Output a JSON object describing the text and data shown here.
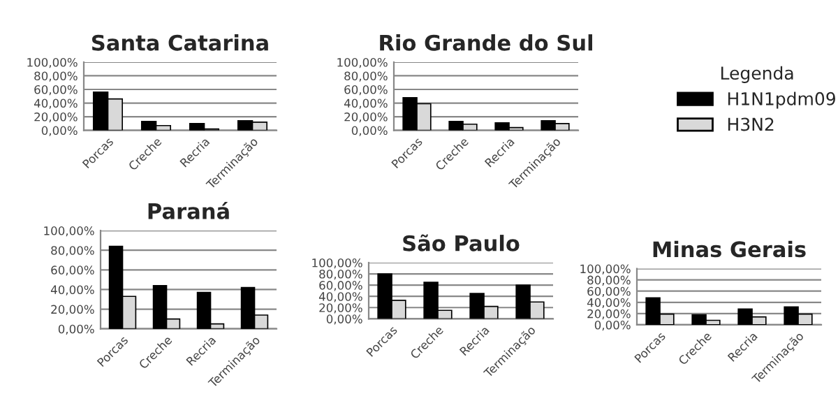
{
  "chart_data": [
    {
      "type": "bar",
      "title": "Santa Catarina",
      "categories": [
        "Porcas",
        "Creche",
        "Recria",
        "Terminação"
      ],
      "series": [
        {
          "color": "#000000",
          "values": [
            56,
            13,
            10,
            14
          ]
        },
        {
          "color": "#d9d9d9",
          "values": [
            46,
            7,
            2,
            12
          ]
        }
      ],
      "ylim": [
        0,
        100
      ],
      "yticks": [
        {
          "value": 0,
          "label": "0,00%"
        },
        {
          "value": 20,
          "label": "20,00%"
        },
        {
          "value": 40,
          "label": "40,00%"
        },
        {
          "value": 60,
          "label": "60,00%"
        },
        {
          "value": 80,
          "label": "80,00%"
        },
        {
          "value": 100,
          "label": "100,00%"
        }
      ],
      "grid": "y"
    },
    {
      "type": "bar",
      "title": "Rio Grande do Sul",
      "categories": [
        "Porcas",
        "Creche",
        "Recria",
        "Terminação"
      ],
      "series": [
        {
          "name": "H1N1pdm09",
          "color": "#000000",
          "values": [
            48,
            13,
            11,
            14
          ]
        },
        {
          "name": "H3N2",
          "color": "#d9d9d9",
          "values": [
            39,
            9,
            4,
            10
          ]
        }
      ],
      "ylim": [
        0,
        100
      ],
      "yticks": [
        {
          "value": 0,
          "label": "0,00%"
        },
        {
          "value": 20,
          "label": "20,00%"
        },
        {
          "value": 40,
          "label": "40,00%"
        },
        {
          "value": 60,
          "label": "60,00%"
        },
        {
          "value": 80,
          "label": "80,00%"
        },
        {
          "value": 100,
          "label": "100,00%"
        }
      ],
      "grid": "y",
      "legend": "right",
      "legend_title": "Legenda"
    },
    {
      "type": "bar",
      "title": "Paraná",
      "categories": [
        "Porcas",
        "Creche",
        "Recria",
        "Terminação"
      ],
      "series": [
        {
          "color": "#000000",
          "values": [
            84,
            44,
            37,
            42
          ]
        },
        {
          "color": "#d9d9d9",
          "values": [
            33,
            10,
            5,
            14
          ]
        }
      ],
      "ylim": [
        0,
        100
      ],
      "yticks": [
        {
          "value": 0,
          "label": "0,00%"
        },
        {
          "value": 20,
          "label": "20,00%"
        },
        {
          "value": 40,
          "label": "40,00%"
        },
        {
          "value": 60,
          "label": "60,00%"
        },
        {
          "value": 80,
          "label": "80,00%"
        },
        {
          "value": 100,
          "label": "100,00%"
        }
      ],
      "grid": "y"
    },
    {
      "type": "bar",
      "title": "São Paulo",
      "categories": [
        "Porcas",
        "Creche",
        "Recria",
        "Terminação"
      ],
      "series": [
        {
          "color": "#000000",
          "values": [
            80,
            65,
            45,
            60
          ]
        },
        {
          "color": "#d9d9d9",
          "values": [
            33,
            15,
            22,
            30
          ]
        }
      ],
      "ylim": [
        0,
        100
      ],
      "yticks": [
        {
          "value": 0,
          "label": "0,00%"
        },
        {
          "value": 20,
          "label": "20,00%"
        },
        {
          "value": 40,
          "label": "40,00%"
        },
        {
          "value": 60,
          "label": "60,00%"
        },
        {
          "value": 80,
          "label": "80,00%"
        },
        {
          "value": 100,
          "label": "100,00%"
        }
      ],
      "grid": "y"
    },
    {
      "type": "bar",
      "title": "Minas Gerais",
      "categories": [
        "Porcas",
        "Creche",
        "Recria",
        "Terminação"
      ],
      "series": [
        {
          "color": "#000000",
          "values": [
            48,
            18,
            28,
            32
          ]
        },
        {
          "color": "#d9d9d9",
          "values": [
            19,
            8,
            14,
            19
          ]
        }
      ],
      "ylim": [
        0,
        100
      ],
      "yticks": [
        {
          "value": 0,
          "label": "0,00%"
        },
        {
          "value": 20,
          "label": "20,00%"
        },
        {
          "value": 40,
          "label": "40,00%"
        },
        {
          "value": 60,
          "label": "60,00%"
        },
        {
          "value": 80,
          "label": "80,00%"
        },
        {
          "value": 100,
          "label": "100,00%"
        }
      ],
      "grid": "y"
    }
  ]
}
